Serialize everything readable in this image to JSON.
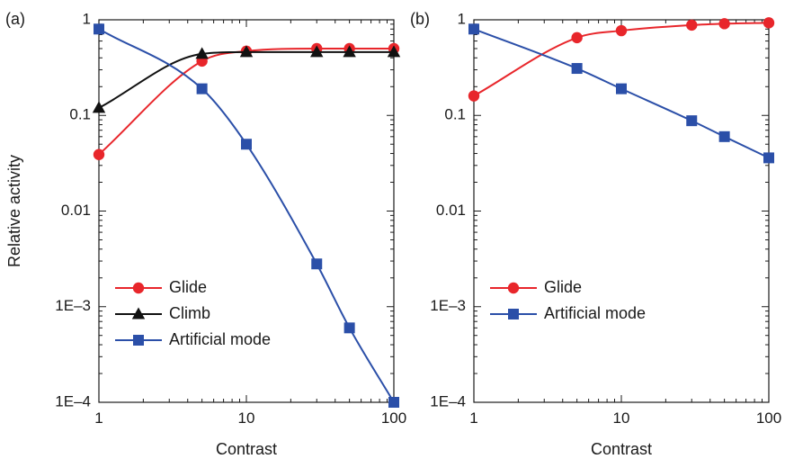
{
  "chart_data": [
    {
      "type": "line",
      "panel_label": "(a)",
      "xlabel": "Contrast",
      "ylabel": "Relative activity",
      "xscale": "log",
      "yscale": "log",
      "xlim": [
        1,
        100
      ],
      "ylim": [
        0.0001,
        1
      ],
      "xticks": [
        1,
        10,
        100
      ],
      "xtick_labels": [
        "1",
        "10",
        "100"
      ],
      "yticks": [
        0.0001,
        0.001,
        0.01,
        0.1,
        1
      ],
      "ytick_labels": [
        "1E–4",
        "1E–3",
        "0.01",
        "0.1",
        "1"
      ],
      "grid": false,
      "legend_position": "lower-left",
      "series": [
        {
          "name": "Glide",
          "color": "#e8262b",
          "marker": "circle",
          "x": [
            1,
            5,
            10,
            30,
            50,
            100
          ],
          "y": [
            0.039,
            0.37,
            0.47,
            0.5,
            0.5,
            0.5
          ]
        },
        {
          "name": "Climb",
          "color": "#111111",
          "marker": "triangle",
          "x": [
            1,
            5,
            10,
            30,
            50,
            100
          ],
          "y": [
            0.12,
            0.44,
            0.46,
            0.46,
            0.46,
            0.46
          ]
        },
        {
          "name": "Artificial mode",
          "color": "#2b4fa8",
          "marker": "square",
          "x": [
            1,
            5,
            10,
            30,
            50,
            100
          ],
          "y": [
            0.8,
            0.19,
            0.05,
            0.0028,
            0.0006,
            0.0001
          ]
        }
      ]
    },
    {
      "type": "line",
      "panel_label": "(b)",
      "xlabel": "Contrast",
      "ylabel": "",
      "xscale": "log",
      "yscale": "log",
      "xlim": [
        1,
        100
      ],
      "ylim": [
        0.0001,
        1
      ],
      "xticks": [
        1,
        10,
        100
      ],
      "xtick_labels": [
        "1",
        "10",
        "100"
      ],
      "yticks": [
        0.0001,
        0.001,
        0.01,
        0.1,
        1
      ],
      "ytick_labels": [
        "1E–4",
        "1E–3",
        "0.01",
        "0.1",
        "1"
      ],
      "grid": false,
      "legend_position": "lower-left",
      "series": [
        {
          "name": "Glide",
          "color": "#e8262b",
          "marker": "circle",
          "x": [
            1,
            5,
            10,
            30,
            50,
            100
          ],
          "y": [
            0.16,
            0.65,
            0.77,
            0.88,
            0.91,
            0.93
          ]
        },
        {
          "name": "Artificial mode",
          "color": "#2b4fa8",
          "marker": "square",
          "x": [
            1,
            5,
            10,
            30,
            50,
            100
          ],
          "y": [
            0.8,
            0.31,
            0.19,
            0.088,
            0.06,
            0.036
          ]
        }
      ]
    }
  ]
}
